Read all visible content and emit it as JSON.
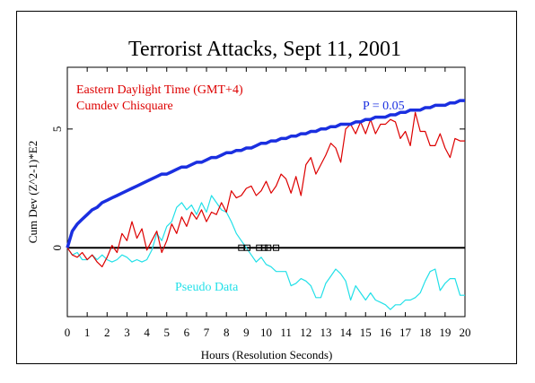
{
  "chart_data": {
    "type": "line",
    "title": "Terrorist Attacks, Sept 11, 2001",
    "xlabel": "Hours (Resolution Seconds)",
    "ylabel": "Cum Dev (Z^2-1)*E2",
    "xlim": [
      0,
      20
    ],
    "ylim": [
      -2.9,
      7.6
    ],
    "x_ticks": [
      "0",
      "1",
      "2",
      "3",
      "4",
      "5",
      "6",
      "7",
      "8",
      "9",
      "10",
      "11",
      "12",
      "13",
      "14",
      "15",
      "16",
      "17",
      "18",
      "19",
      "20"
    ],
    "y_ticks": [
      "0",
      "5"
    ],
    "y_tick_values": [
      0,
      5
    ],
    "annotations": {
      "timezone": "Eastern Daylight Time (GMT+4)",
      "measure": "Cumdev Chisquare",
      "probability": "P = 0.05",
      "pseudo": "Pseudo Data"
    },
    "event_marker_hours": [
      8.75,
      9.05,
      9.65,
      9.9,
      10.1,
      10.5
    ],
    "colors": {
      "main": "#dd0000",
      "pseudo": "#22e0e8",
      "envelope": "#1a2fe0",
      "axis": "#000000"
    },
    "series": [
      {
        "name": "Cumdev Chisquare",
        "color": "#dd0000",
        "x": [
          0,
          0.25,
          0.5,
          0.75,
          1,
          1.25,
          1.5,
          1.75,
          2,
          2.25,
          2.5,
          2.75,
          3,
          3.25,
          3.5,
          3.75,
          4,
          4.25,
          4.5,
          4.75,
          5,
          5.25,
          5.5,
          5.75,
          6,
          6.25,
          6.5,
          6.75,
          7,
          7.25,
          7.5,
          7.75,
          8,
          8.25,
          8.5,
          8.75,
          9,
          9.25,
          9.5,
          9.75,
          10,
          10.25,
          10.5,
          10.75,
          11,
          11.25,
          11.5,
          11.75,
          12,
          12.25,
          12.5,
          12.75,
          13,
          13.25,
          13.5,
          13.75,
          14,
          14.25,
          14.5,
          14.75,
          15,
          15.25,
          15.5,
          15.75,
          16,
          16.25,
          16.5,
          16.75,
          17,
          17.25,
          17.5,
          17.75,
          18,
          18.25,
          18.5,
          18.75,
          19,
          19.25,
          19.5,
          19.75,
          20
        ],
        "values": [
          0,
          -0.3,
          -0.4,
          -0.2,
          -0.5,
          -0.3,
          -0.6,
          -0.8,
          -0.4,
          0.1,
          -0.2,
          0.6,
          0.3,
          1.1,
          0.4,
          0.8,
          -0.1,
          0.3,
          0.7,
          -0.2,
          0.3,
          1,
          0.6,
          1.3,
          0.9,
          1.5,
          1.2,
          1.6,
          1.1,
          1.5,
          1.4,
          1.9,
          1.5,
          2.4,
          2.1,
          2.2,
          2.5,
          2.6,
          2.2,
          2.4,
          2.8,
          2.3,
          2.6,
          3.1,
          2.9,
          2.3,
          3,
          2.2,
          3.5,
          3.8,
          3.1,
          3.5,
          3.9,
          4.4,
          4.2,
          3.6,
          5,
          5.2,
          4.8,
          5.3,
          4.8,
          5.4,
          4.8,
          5.2,
          5.2,
          5.4,
          5.3,
          4.6,
          4.9,
          4.3,
          5.7,
          4.9,
          4.9,
          4.3,
          4.3,
          4.8,
          4.2,
          3.8,
          4.6,
          4.5,
          4.5
        ]
      },
      {
        "name": "Pseudo Data",
        "color": "#22e0e8",
        "x": [
          0,
          0.25,
          0.5,
          0.75,
          1,
          1.25,
          1.5,
          1.75,
          2,
          2.25,
          2.5,
          2.75,
          3,
          3.25,
          3.5,
          3.75,
          4,
          4.25,
          4.5,
          4.75,
          5,
          5.25,
          5.5,
          5.75,
          6,
          6.25,
          6.5,
          6.75,
          7,
          7.25,
          7.5,
          7.75,
          8,
          8.25,
          8.5,
          8.75,
          9,
          9.25,
          9.5,
          9.75,
          10,
          10.25,
          10.5,
          10.75,
          11,
          11.25,
          11.5,
          11.75,
          12,
          12.25,
          12.5,
          12.75,
          13,
          13.25,
          13.5,
          13.75,
          14,
          14.25,
          14.5,
          14.75,
          15,
          15.25,
          15.5,
          15.75,
          16,
          16.25,
          16.5,
          16.75,
          17,
          17.25,
          17.5,
          17.75,
          18,
          18.25,
          18.5,
          18.75,
          19,
          19.25,
          19.5,
          19.75,
          20
        ],
        "values": [
          0,
          -0.3,
          -0.2,
          -0.5,
          -0.5,
          -0.3,
          -0.5,
          -0.3,
          -0.5,
          -0.6,
          -0.5,
          -0.3,
          -0.4,
          -0.6,
          -0.5,
          -0.6,
          -0.5,
          -0.1,
          0.6,
          0.3,
          0.9,
          1.1,
          1.7,
          1.9,
          1.6,
          1.8,
          1.4,
          1.9,
          1.5,
          2.2,
          1.9,
          1.6,
          1.5,
          1.1,
          0.6,
          0.3,
          0,
          -0.3,
          -0.6,
          -0.4,
          -0.7,
          -0.8,
          -1,
          -1,
          -1,
          -1.6,
          -1.5,
          -1.3,
          -1.4,
          -1.6,
          -2.1,
          -2.1,
          -1.5,
          -1.2,
          -0.9,
          -1.1,
          -1.4,
          -2.2,
          -1.6,
          -1.9,
          -2.2,
          -1.9,
          -2.2,
          -2.3,
          -2.4,
          -2.6,
          -2.4,
          -2.4,
          -2.2,
          -2.2,
          -2.1,
          -1.9,
          -1.4,
          -1,
          -0.9,
          -1.8,
          -1.5,
          -1.3,
          -1.3,
          -2,
          -2
        ]
      },
      {
        "name": "P = 0.05",
        "color": "#1a2fe0",
        "x": [
          0,
          0.25,
          0.5,
          0.75,
          1,
          1.25,
          1.5,
          1.75,
          2,
          2.25,
          2.5,
          2.75,
          3,
          3.25,
          3.5,
          3.75,
          4,
          4.25,
          4.5,
          4.75,
          5,
          5.25,
          5.5,
          5.75,
          6,
          6.25,
          6.5,
          6.75,
          7,
          7.25,
          7.5,
          7.75,
          8,
          8.25,
          8.5,
          8.75,
          9,
          9.25,
          9.5,
          9.75,
          10,
          10.25,
          10.5,
          10.75,
          11,
          11.25,
          11.5,
          11.75,
          12,
          12.25,
          12.5,
          12.75,
          13,
          13.25,
          13.5,
          13.75,
          14,
          14.25,
          14.5,
          14.75,
          15,
          15.25,
          15.5,
          15.75,
          16,
          16.25,
          16.5,
          16.75,
          17,
          17.25,
          17.5,
          17.75,
          18,
          18.25,
          18.5,
          18.75,
          19,
          19.25,
          19.5,
          19.75,
          20
        ],
        "values": [
          0,
          0.7,
          1,
          1.2,
          1.4,
          1.6,
          1.7,
          1.9,
          2,
          2.1,
          2.2,
          2.3,
          2.4,
          2.5,
          2.6,
          2.7,
          2.8,
          2.9,
          3,
          3.1,
          3.1,
          3.2,
          3.3,
          3.4,
          3.4,
          3.5,
          3.6,
          3.6,
          3.7,
          3.8,
          3.8,
          3.9,
          4,
          4,
          4.1,
          4.1,
          4.2,
          4.2,
          4.3,
          4.4,
          4.4,
          4.5,
          4.5,
          4.6,
          4.6,
          4.7,
          4.7,
          4.8,
          4.8,
          4.9,
          4.9,
          5,
          5,
          5.1,
          5.1,
          5.2,
          5.2,
          5.2,
          5.3,
          5.3,
          5.4,
          5.4,
          5.5,
          5.5,
          5.5,
          5.6,
          5.6,
          5.7,
          5.7,
          5.8,
          5.8,
          5.8,
          5.9,
          5.9,
          6,
          6,
          6,
          6.1,
          6.1,
          6.2,
          6.2
        ]
      }
    ]
  }
}
